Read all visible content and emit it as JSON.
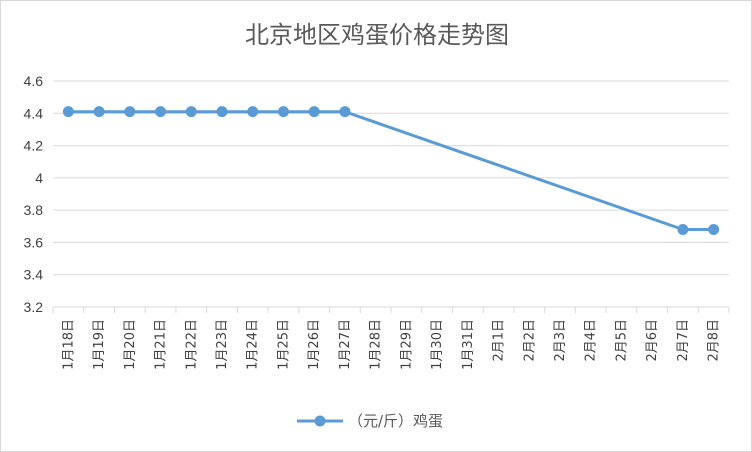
{
  "chart_data": {
    "type": "line",
    "title": "北京地区鸡蛋价格走势图",
    "xlabel": "",
    "ylabel": "",
    "categories": [
      "1月18日",
      "1月19日",
      "1月20日",
      "1月21日",
      "1月22日",
      "1月23日",
      "1月24日",
      "1月25日",
      "1月26日",
      "1月27日",
      "1月28日",
      "1月29日",
      "1月30日",
      "1月31日",
      "2月1日",
      "2月2日",
      "2月3日",
      "2月4日",
      "2月5日",
      "2月6日",
      "2月7日",
      "2月8日"
    ],
    "ylim": [
      3.2,
      4.6
    ],
    "yticks": [
      "3.2",
      "3.4",
      "3.6",
      "3.8",
      "4",
      "4.2",
      "4.4",
      "4.6"
    ],
    "grid": true,
    "legend_position": "bottom",
    "series": [
      {
        "name": "（元/斤）鸡蛋",
        "color": "#5b9bd5",
        "values": [
          4.41,
          4.41,
          4.41,
          4.41,
          4.41,
          4.41,
          4.41,
          4.41,
          4.41,
          4.41,
          null,
          null,
          null,
          null,
          null,
          null,
          null,
          null,
          null,
          null,
          3.68,
          3.68
        ],
        "markers": [
          true,
          true,
          true,
          true,
          true,
          true,
          true,
          true,
          true,
          true,
          false,
          false,
          false,
          false,
          false,
          false,
          false,
          false,
          false,
          false,
          true,
          true
        ]
      }
    ]
  }
}
